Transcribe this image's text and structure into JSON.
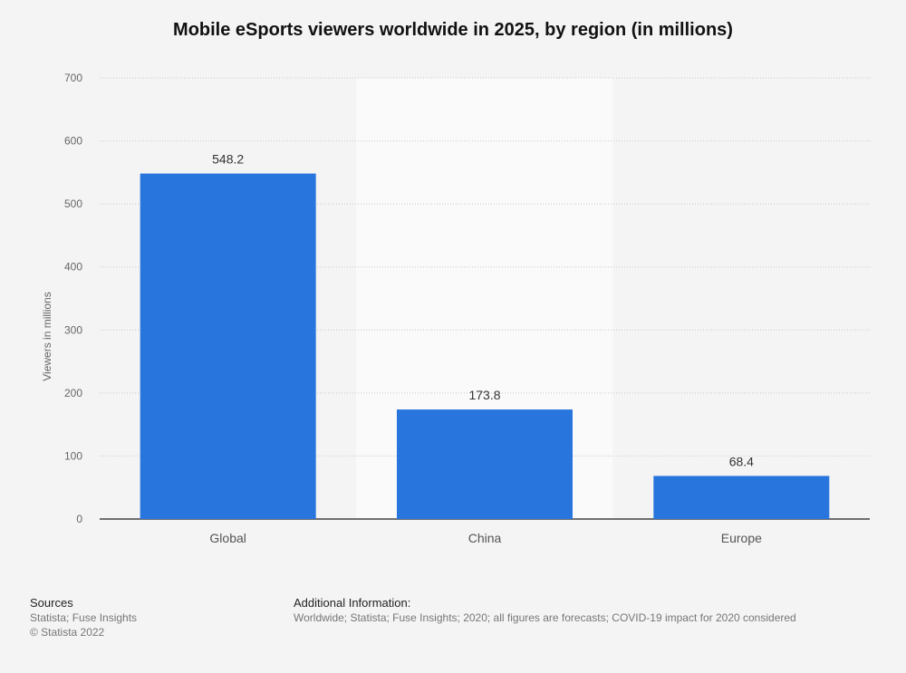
{
  "title": "Mobile eSports viewers worldwide in 2025, by region (in millions)",
  "chart_data": {
    "type": "bar",
    "title": "Mobile eSports viewers worldwide in 2025, by region (in millions)",
    "categories": [
      "Global",
      "China",
      "Europe"
    ],
    "values": [
      548.2,
      173.8,
      68.4
    ],
    "value_labels": [
      "548.2",
      "173.8",
      "68.4"
    ],
    "xlabel": "",
    "ylabel": "Viewers in millions",
    "ylim": [
      0,
      700
    ],
    "yticks": [
      0,
      100,
      200,
      300,
      400,
      500,
      600,
      700
    ],
    "grid": true,
    "legend": "none",
    "bar_color": "#2876dd",
    "highlight_band_color": "#fafafa"
  },
  "footer": {
    "sources_heading": "Sources",
    "sources_line1": "Statista; Fuse Insights",
    "sources_line2": "© Statista 2022",
    "additional_heading": "Additional Information:",
    "additional_text": "Worldwide; Statista; Fuse Insights; 2020; all figures are forecasts; COVID-19 impact for 2020 considered"
  }
}
